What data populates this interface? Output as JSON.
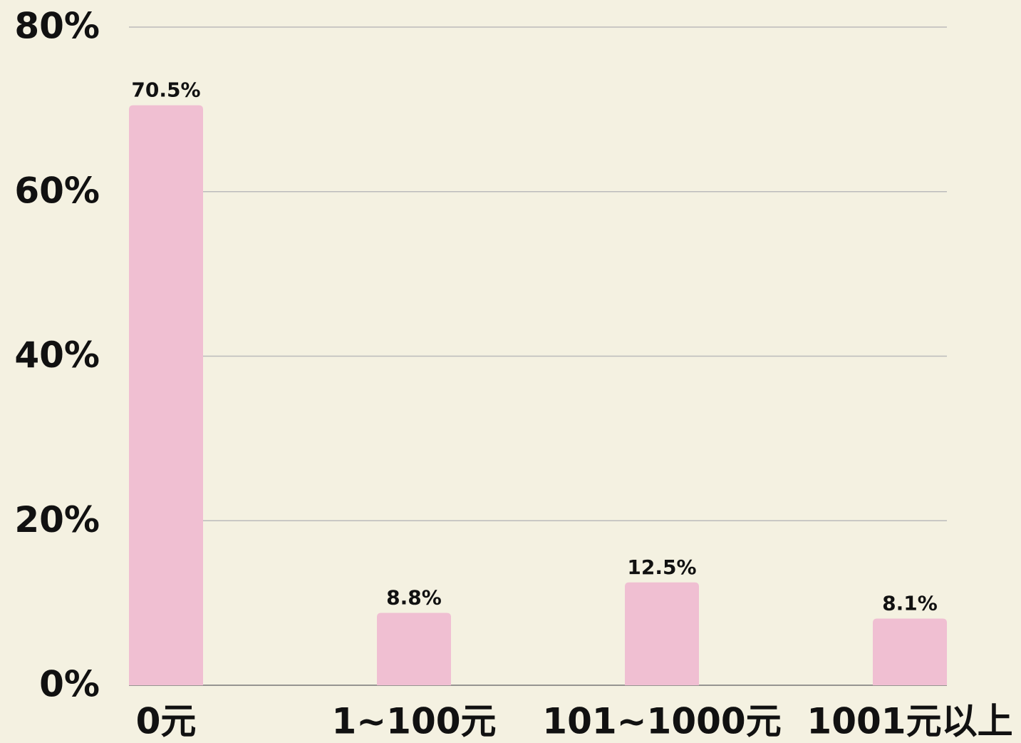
{
  "chart_data": {
    "type": "bar",
    "categories": [
      "0元",
      "1~100元",
      "101~1000元",
      "1001元以上"
    ],
    "values": [
      70.5,
      8.8,
      12.5,
      8.1
    ],
    "value_labels": [
      "70.5%",
      "8.8%",
      "12.5%",
      "8.1%"
    ],
    "color": "#f0bfd2",
    "ylim": [
      0,
      80
    ],
    "yticks": [
      {
        "value": 0,
        "label": "0%"
      },
      {
        "value": 20,
        "label": "20%"
      },
      {
        "value": 40,
        "label": "40%"
      },
      {
        "value": 60,
        "label": "60%"
      },
      {
        "value": 80,
        "label": "80%"
      }
    ],
    "grid": true
  }
}
